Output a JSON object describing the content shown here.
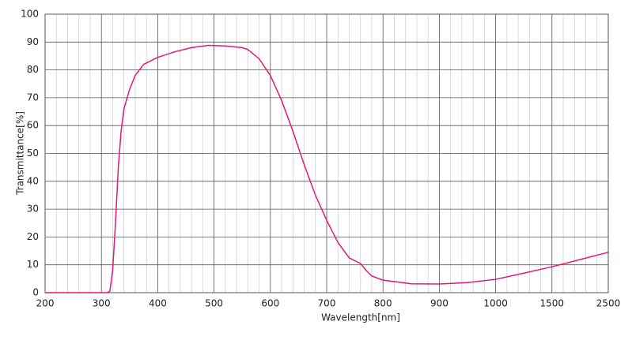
{
  "chart_data": {
    "type": "line",
    "xlabel": "Wavelength[nm]",
    "ylabel": "Transmittance[%]",
    "x": [
      200,
      300,
      310,
      315,
      320,
      325,
      330,
      335,
      340,
      350,
      360,
      375,
      400,
      430,
      460,
      490,
      520,
      550,
      560,
      580,
      600,
      620,
      640,
      660,
      680,
      700,
      720,
      740,
      760,
      770,
      780,
      800,
      850,
      900,
      950,
      1000,
      1250,
      1500,
      2000,
      2500
    ],
    "series": [
      {
        "name": "Transmittance",
        "color": "#e0197a",
        "values": [
          0,
          0,
          0,
          0.5,
          8,
          25,
          45,
          58,
          66,
          73,
          78,
          82,
          84.5,
          86.5,
          88,
          88.8,
          88.6,
          88,
          87.3,
          84,
          78,
          69,
          58,
          46,
          35,
          26,
          18,
          12.5,
          10.5,
          8,
          6,
          4.5,
          3.2,
          3.1,
          3.6,
          4.8,
          7,
          9.3,
          11.9,
          14.5
        ]
      }
    ],
    "xlim": [
      200,
      2500
    ],
    "xticks": [
      200,
      300,
      400,
      500,
      600,
      700,
      800,
      900,
      1000,
      1500,
      2500
    ],
    "ylim": [
      0,
      100
    ],
    "yticks": [
      0,
      10,
      20,
      30,
      40,
      50,
      60,
      70,
      80,
      90,
      100
    ],
    "grid": true
  }
}
